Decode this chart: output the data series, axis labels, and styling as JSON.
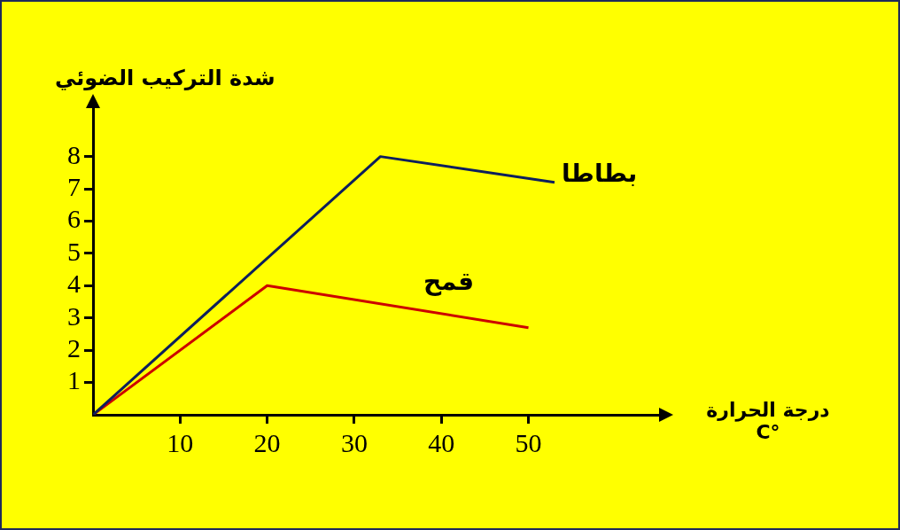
{
  "chart_data": {
    "type": "line",
    "xlabel": "درجة الحرارة °C",
    "ylabel": "شدة التركيب الضوئي",
    "xlim": [
      0,
      65
    ],
    "ylim": [
      0,
      9.5
    ],
    "xticks": [
      10,
      20,
      30,
      40,
      50
    ],
    "yticks": [
      1,
      2,
      3,
      4,
      5,
      6,
      7,
      8
    ],
    "series": [
      {
        "name": "بطاطا",
        "color": "#0d1f5c",
        "x": [
          0,
          33,
          53
        ],
        "values": [
          0,
          8,
          7.2
        ]
      },
      {
        "name": "قمح",
        "color": "#cc0000",
        "x": [
          0,
          20,
          50
        ],
        "values": [
          0,
          4,
          2.7
        ]
      }
    ],
    "grid": false,
    "legend": false,
    "marker": "none",
    "line_style": "solid"
  }
}
